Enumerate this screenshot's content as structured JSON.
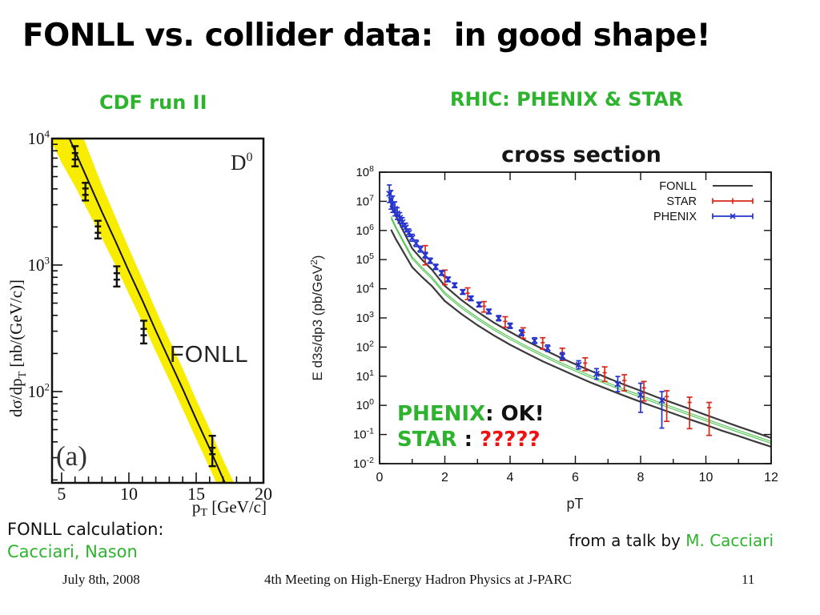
{
  "slide": {
    "title": "FONLL vs. collider data:  in good shape!",
    "left_heading": "CDF run II",
    "right_heading": "RHIC: PHENIX & STAR",
    "annotation": {
      "phenix_label": "PHENIX",
      "phenix_sep": ": ",
      "phenix_verdict": "OK!",
      "star_label": "STAR",
      "star_sep": " : ",
      "star_verdict": "?????"
    },
    "fonll_calc_line1": "FONLL calculation:",
    "fonll_calc_line2": "Cacciari, Nason",
    "credit_prefix": "from a talk by ",
    "credit_name": "M. Cacciari",
    "footer": {
      "date": "July 8th, 2008",
      "event": "4th Meeting on High-Energy Hadron Physics at J-PARC",
      "page": "11"
    }
  },
  "colors": {
    "green_text": "#2db32d",
    "red_text": "#ee1111",
    "black_text": "#111111",
    "star_red": "#d92718",
    "phenix_blue": "#2433cc",
    "band_yellow": "#f8ec00",
    "fonll_gray": "#3a3a3a",
    "band_green": "#4ec34e"
  },
  "chart_data": [
    {
      "id": "cdf",
      "type": "line",
      "title_corner": {
        "base": "D",
        "sup": "0"
      },
      "curve_label": "FONLL",
      "panel_label": "(a)",
      "xlabel": {
        "pre": "p",
        "sub": "T",
        "post": " [GeV/c]"
      },
      "ylabel": {
        "pre": "dσ/dp",
        "sub": "T",
        "post": " [nb/(GeV/c)]"
      },
      "x_range": [
        4.29,
        20.0
      ],
      "y_log_range": [
        1.278,
        4.0
      ],
      "x_major_ticks": [
        5,
        10,
        15,
        20
      ],
      "x_minor_step": 1,
      "y_decade_labels": [
        4,
        3,
        2
      ],
      "grid": false,
      "series": [
        {
          "name": "FONLL central (theory band center)",
          "x": [
            4.3,
            5.0,
            6.0,
            7.0,
            8.0,
            9.0,
            10.0,
            11.0,
            12.0,
            13.0,
            14.0,
            15.0,
            16.0,
            17.0,
            17.8
          ],
          "log10y": [
            4.32,
            4.14,
            3.9,
            3.66,
            3.42,
            3.19,
            2.95,
            2.72,
            2.48,
            2.25,
            2.02,
            1.78,
            1.55,
            1.31,
            1.13
          ],
          "band_halfwidth_decades": [
            0.36,
            0.33,
            0.28,
            0.24,
            0.21,
            0.19,
            0.18,
            0.17,
            0.165,
            0.16,
            0.16,
            0.155,
            0.155,
            0.15,
            0.15
          ]
        },
        {
          "name": "CDF Run II D0 data",
          "x": [
            6.0,
            6.77,
            7.7,
            9.1,
            11.1,
            16.2
          ],
          "log10y": [
            3.86,
            3.58,
            3.28,
            2.91,
            2.47,
            1.53
          ],
          "err_decades": [
            0.08,
            0.07,
            0.07,
            0.08,
            0.09,
            0.12
          ]
        }
      ]
    },
    {
      "id": "rhic",
      "type": "line",
      "title": "cross section",
      "xlabel": "pT",
      "ylabel": {
        "pre": "E d3s/dp3 (pb/GeV",
        "sup": "2",
        "post": ")"
      },
      "x_range": [
        0,
        12
      ],
      "y_log_range": [
        -2,
        8
      ],
      "x_major_tick_step": 2,
      "x_minor_tick_step": 1,
      "grid": false,
      "legend": [
        "FONLL",
        "STAR",
        "PHENIX"
      ],
      "legend_position": "top-right-inside",
      "series": [
        {
          "name": "FONLL",
          "x": [
            0.35,
            0.5,
            0.7,
            1.0,
            1.3,
            1.6,
            2.0,
            2.5,
            3.0,
            3.5,
            4.0,
            4.5,
            5.0,
            5.5,
            6.0,
            6.5,
            7.0,
            7.5,
            8.0,
            8.5,
            9.0,
            9.5,
            10.0,
            10.5,
            11.0,
            11.5,
            12.0
          ],
          "log10y": [
            6.45,
            6.1,
            5.68,
            5.06,
            4.7,
            4.38,
            3.84,
            3.38,
            2.98,
            2.62,
            2.3,
            2.0,
            1.72,
            1.46,
            1.21,
            0.97,
            0.74,
            0.52,
            0.31,
            0.1,
            -0.1,
            -0.3,
            -0.5,
            -0.7,
            -0.89,
            -1.08,
            -1.27
          ],
          "band_halfwidth_decades": [
            0.42,
            0.4,
            0.36,
            0.32,
            0.3,
            0.28,
            0.26,
            0.24,
            0.23,
            0.22,
            0.22,
            0.21,
            0.21,
            0.2,
            0.2,
            0.2,
            0.19,
            0.19,
            0.19,
            0.18,
            0.18,
            0.18,
            0.17,
            0.17,
            0.16,
            0.16,
            0.15
          ]
        },
        {
          "name": "STAR",
          "x": [
            1.4,
            2.0,
            2.7,
            3.2,
            3.85,
            4.4,
            5.0,
            5.6,
            6.3,
            6.9,
            7.5,
            8.1,
            8.8,
            9.5,
            10.1
          ],
          "log10y": [
            5.2,
            4.42,
            3.85,
            3.4,
            2.88,
            2.5,
            2.15,
            1.78,
            1.45,
            1.12,
            0.85,
            0.6,
            0.3,
            0.1,
            -0.08
          ],
          "err_up": [
            0.28,
            0.22,
            0.18,
            0.16,
            0.16,
            0.16,
            0.17,
            0.18,
            0.18,
            0.2,
            0.2,
            0.22,
            0.2,
            0.18,
            0.18
          ],
          "err_dn": [
            0.38,
            0.28,
            0.22,
            0.2,
            0.2,
            0.2,
            0.22,
            0.24,
            0.26,
            0.3,
            0.35,
            0.45,
            0.85,
            0.9,
            0.95
          ]
        },
        {
          "name": "PHENIX",
          "x": [
            0.3,
            0.35,
            0.4,
            0.47,
            0.54,
            0.62,
            0.7,
            0.8,
            0.9,
            1.0,
            1.12,
            1.25,
            1.4,
            1.55,
            1.72,
            1.9,
            2.1,
            2.3,
            2.55,
            2.8,
            3.05,
            3.35,
            3.65,
            4.0,
            4.35,
            4.75,
            5.15,
            5.6,
            6.1,
            6.65,
            7.3,
            8.0,
            8.65
          ],
          "log10y": [
            7.26,
            7.05,
            6.9,
            6.74,
            6.58,
            6.43,
            6.28,
            6.1,
            5.92,
            5.75,
            5.56,
            5.36,
            5.15,
            4.96,
            4.75,
            4.54,
            4.32,
            4.12,
            3.89,
            3.67,
            3.46,
            3.22,
            2.99,
            2.73,
            2.49,
            2.22,
            1.96,
            1.69,
            1.39,
            1.08,
            0.73,
            0.36,
            0.17
          ],
          "err_up": [
            0.3,
            0.32,
            0.28,
            0.24,
            0.2,
            0.18,
            0.16,
            0.15,
            0.13,
            0.12,
            0.11,
            0.1,
            0.1,
            0.09,
            0.09,
            0.08,
            0.08,
            0.08,
            0.08,
            0.08,
            0.08,
            0.08,
            0.09,
            0.09,
            0.1,
            0.1,
            0.11,
            0.12,
            0.14,
            0.18,
            0.26,
            0.4,
            0.3
          ],
          "err_dn": [
            0.3,
            0.32,
            0.28,
            0.24,
            0.2,
            0.18,
            0.16,
            0.15,
            0.13,
            0.12,
            0.11,
            0.1,
            0.1,
            0.09,
            0.09,
            0.08,
            0.08,
            0.08,
            0.08,
            0.08,
            0.08,
            0.08,
            0.09,
            0.09,
            0.1,
            0.1,
            0.11,
            0.12,
            0.14,
            0.18,
            0.26,
            0.6,
            0.95
          ]
        }
      ]
    }
  ]
}
